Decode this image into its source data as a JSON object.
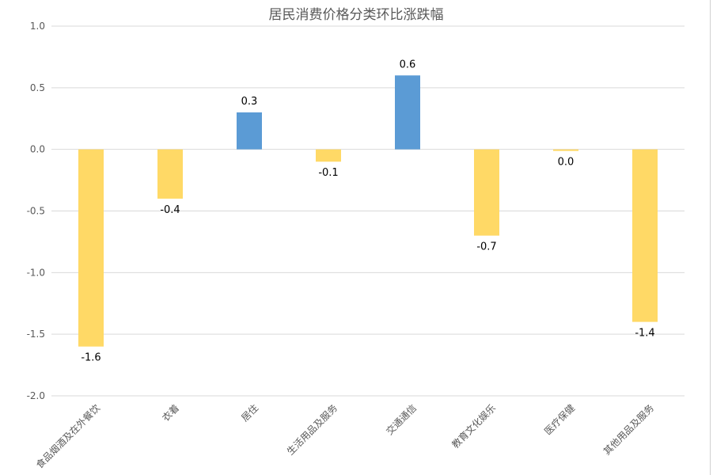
{
  "chart_data": {
    "type": "bar",
    "title": "居民消费价格分类环比涨跌幅",
    "categories": [
      "食品烟酒及在外餐饮",
      "衣着",
      "居住",
      "生活用品及服务",
      "交通通信",
      "教育文化娱乐",
      "医疗保健",
      "其他用品及服务"
    ],
    "values": [
      -1.6,
      -0.4,
      0.3,
      -0.1,
      0.6,
      -0.7,
      0.0,
      -1.4
    ],
    "data_labels": [
      "-1.6",
      "-0.4",
      "0.3",
      "-0.1",
      "0.6",
      "-0.7",
      "0.0",
      "-1.4"
    ],
    "ylim": [
      -2.0,
      1.0
    ],
    "yticks": [
      "1.0",
      "0.5",
      "0.0",
      "-0.5",
      "-1.0",
      "-1.5",
      "-2.0"
    ],
    "ytick_values": [
      1.0,
      0.5,
      0.0,
      -0.5,
      -1.0,
      -1.5,
      -2.0
    ],
    "xlabel": "",
    "ylabel": "",
    "grid": true,
    "colors": {
      "positive": "#5B9BD5",
      "negative": "#FFD966",
      "grid": "#d9d9d9",
      "text": "#595959"
    }
  }
}
